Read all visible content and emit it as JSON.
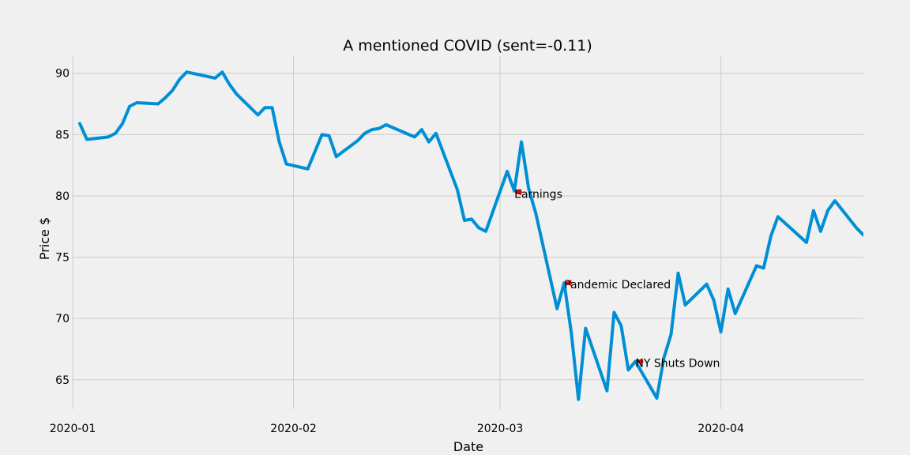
{
  "chart_data": {
    "type": "line",
    "title": "A mentioned COVID (sent=-0.11)",
    "xlabel": "Date",
    "ylabel": "Price $",
    "x_ticks": [
      "2020-01",
      "2020-02",
      "2020-03",
      "2020-04"
    ],
    "y_ticks": [
      65,
      70,
      75,
      80,
      85,
      90
    ],
    "xlim": [
      "2020-01-01",
      "2020-04-21"
    ],
    "ylim": [
      62.6,
      91.4
    ],
    "grid": true,
    "series": [
      {
        "color": "#008fd5",
        "x": [
          "2020-01-02",
          "2020-01-03",
          "2020-01-06",
          "2020-01-07",
          "2020-01-08",
          "2020-01-09",
          "2020-01-10",
          "2020-01-13",
          "2020-01-14",
          "2020-01-15",
          "2020-01-16",
          "2020-01-17",
          "2020-01-21",
          "2020-01-22",
          "2020-01-23",
          "2020-01-24",
          "2020-01-27",
          "2020-01-28",
          "2020-01-29",
          "2020-01-30",
          "2020-01-31",
          "2020-02-03",
          "2020-02-04",
          "2020-02-05",
          "2020-02-06",
          "2020-02-07",
          "2020-02-10",
          "2020-02-11",
          "2020-02-12",
          "2020-02-13",
          "2020-02-14",
          "2020-02-18",
          "2020-02-19",
          "2020-02-20",
          "2020-02-21",
          "2020-02-24",
          "2020-02-25",
          "2020-02-26",
          "2020-02-27",
          "2020-02-28",
          "2020-03-02",
          "2020-03-03",
          "2020-03-04",
          "2020-03-05",
          "2020-03-06",
          "2020-03-09",
          "2020-03-10",
          "2020-03-11",
          "2020-03-12",
          "2020-03-13",
          "2020-03-16",
          "2020-03-17",
          "2020-03-18",
          "2020-03-19",
          "2020-03-20",
          "2020-03-23",
          "2020-03-24",
          "2020-03-25",
          "2020-03-26",
          "2020-03-27",
          "2020-03-30",
          "2020-03-31",
          "2020-04-01",
          "2020-04-02",
          "2020-04-03",
          "2020-04-06",
          "2020-04-07",
          "2020-04-08",
          "2020-04-09",
          "2020-04-13",
          "2020-04-14",
          "2020-04-15",
          "2020-04-16",
          "2020-04-17",
          "2020-04-20",
          "2020-04-21"
        ],
        "y": [
          85.9,
          84.6,
          84.8,
          85.1,
          85.9,
          87.3,
          87.6,
          87.5,
          88.0,
          88.6,
          89.5,
          90.1,
          89.6,
          90.1,
          89.1,
          88.3,
          86.6,
          87.2,
          87.2,
          84.4,
          82.6,
          82.2,
          83.6,
          85.0,
          84.9,
          83.2,
          84.5,
          85.1,
          85.4,
          85.5,
          85.8,
          84.8,
          85.4,
          84.4,
          85.1,
          80.5,
          78.0,
          78.1,
          77.4,
          77.1,
          82.0,
          80.4,
          84.4,
          80.6,
          78.6,
          70.8,
          72.9,
          68.8,
          63.4,
          69.2,
          64.1,
          70.5,
          69.4,
          65.8,
          66.5,
          63.5,
          66.8,
          68.7,
          73.7,
          71.1,
          72.8,
          71.5,
          68.9,
          72.4,
          70.4,
          74.3,
          74.1,
          76.7,
          78.3,
          76.2,
          78.8,
          77.1,
          78.8,
          79.6,
          77.4,
          76.8
        ]
      }
    ],
    "annotations": [
      {
        "text": "Earnings",
        "x": "2020-03-03",
        "y": 80.3
      },
      {
        "text": "Pandemic Declared",
        "x": "2020-03-10",
        "y": 72.9
      },
      {
        "text": "NY Shuts Down",
        "x": "2020-03-20",
        "y": 66.5
      }
    ],
    "annotation_color": "#ff0000"
  }
}
